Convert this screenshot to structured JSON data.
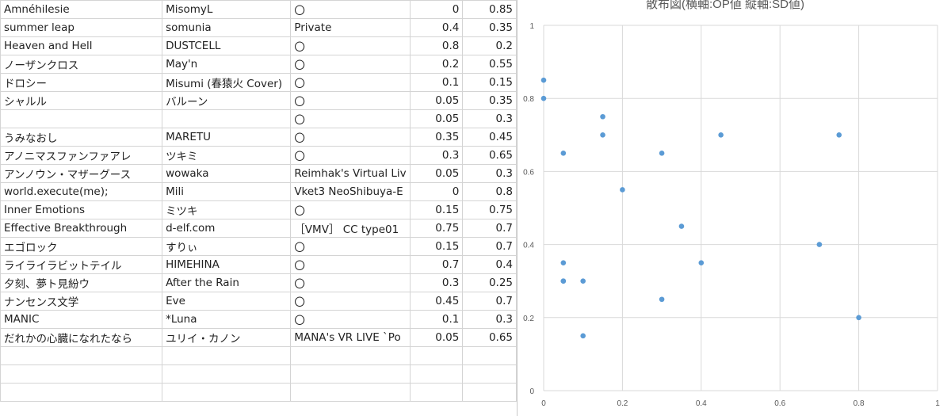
{
  "table": {
    "rows": [
      [
        "Amnéhilesie",
        "MisomyL",
        "〇",
        "0",
        "0.85"
      ],
      [
        "summer leap",
        "somunia",
        "Private",
        "0.4",
        "0.35"
      ],
      [
        "Heaven and Hell",
        "DUSTCELL",
        "〇",
        "0.8",
        "0.2"
      ],
      [
        "ノーザンクロス",
        "May'n",
        "〇",
        "0.2",
        "0.55"
      ],
      [
        "ドロシー",
        "Misumi (春猿火 Cover)",
        "〇",
        "0.1",
        "0.15"
      ],
      [
        "シャルル",
        "バルーン",
        "〇",
        "0.05",
        "0.35"
      ],
      [
        "",
        "",
        "〇",
        "0.05",
        "0.3"
      ],
      [
        "うみなおし",
        "MARETU",
        "〇",
        "0.35",
        "0.45"
      ],
      [
        "アノニマスファンファアレ",
        "ツキミ",
        "〇",
        "0.3",
        "0.65"
      ],
      [
        "アンノウン・マザーグース",
        "wowaka",
        "Reimhak's Virtual Liv",
        "0.05",
        "0.3"
      ],
      [
        "world.execute(me);",
        "Mili",
        "Vket3 NeoShibuya-E",
        "0",
        "0.8"
      ],
      [
        "Inner Emotions",
        "ミツキ",
        "〇",
        "0.15",
        "0.75"
      ],
      [
        "Effective Breakthrough",
        "d-elf.com",
        "［VMV］ CC type01",
        "0.75",
        "0.7"
      ],
      [
        "エゴロック",
        "すりぃ",
        "〇",
        "0.15",
        "0.7"
      ],
      [
        "ライライラビットテイル",
        "HIMEHINA",
        "〇",
        "0.7",
        "0.4"
      ],
      [
        "夕刻、夢ト見紛ウ",
        "After the Rain",
        "〇",
        "0.3",
        "0.25"
      ],
      [
        "ナンセンス文学",
        "Eve",
        "〇",
        "0.45",
        "0.7"
      ],
      [
        "MANIC",
        "*Luna",
        "〇",
        "0.1",
        "0.3"
      ],
      [
        "だれかの心臓になれたなら",
        "ユリイ・カノン",
        "MANA's VR LIVE `Po",
        "0.05",
        "0.65"
      ],
      [
        "",
        "",
        "",
        "",
        ""
      ],
      [
        "",
        "",
        "",
        "",
        ""
      ],
      [
        "",
        "",
        "",
        "",
        ""
      ]
    ]
  },
  "chart_data": {
    "type": "scatter",
    "title": "散布図(横軸:OP値 縦軸:SD値)",
    "xlim": [
      0,
      1
    ],
    "ylim": [
      0,
      1
    ],
    "x_ticks": [
      "0",
      "0.2",
      "0.4",
      "0.6",
      "0.8",
      "1"
    ],
    "y_ticks": [
      "0",
      "0.2",
      "0.4",
      "0.6",
      "0.8",
      "1"
    ],
    "grid": true,
    "point_color": "#5b9bd5",
    "series": [
      {
        "x": [
          0,
          0.4,
          0.8,
          0.2,
          0.1,
          0.05,
          0.05,
          0.35,
          0.3,
          0.05,
          0,
          0.15,
          0.75,
          0.15,
          0.7,
          0.3,
          0.45,
          0.1,
          0.05
        ],
        "y": [
          0.85,
          0.35,
          0.2,
          0.55,
          0.15,
          0.35,
          0.3,
          0.45,
          0.65,
          0.3,
          0.8,
          0.75,
          0.7,
          0.7,
          0.4,
          0.25,
          0.7,
          0.3,
          0.65
        ]
      }
    ]
  }
}
